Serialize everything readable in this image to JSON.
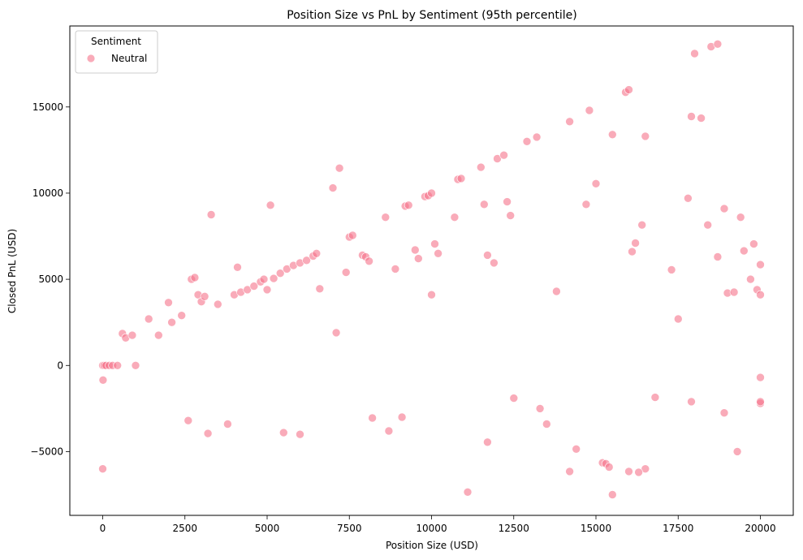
{
  "chart_data": {
    "type": "scatter",
    "title": "Position Size vs PnL by Sentiment (95th percentile)",
    "xlabel": "Position Size (USD)",
    "ylabel": "Closed PnL (USD)",
    "xlim": [
      -1000,
      21000
    ],
    "ylim": [
      -8700,
      19700
    ],
    "x_ticks": [
      0,
      2500,
      5000,
      7500,
      10000,
      12500,
      15000,
      17500,
      20000
    ],
    "x_tick_labels": [
      "0",
      "2500",
      "5000",
      "7500",
      "10000",
      "12500",
      "15000",
      "17500",
      "20000"
    ],
    "y_ticks": [
      -5000,
      0,
      5000,
      10000,
      15000
    ],
    "y_tick_labels": [
      "−5000",
      "0",
      "5000",
      "10000",
      "15000"
    ],
    "grid": false,
    "legend": {
      "title": "Sentiment",
      "placement": "top-left",
      "entries": [
        "Neutral"
      ]
    },
    "marker_color": "#f5738a",
    "marker_opacity": 0.6,
    "series": [
      {
        "name": "Neutral",
        "points": [
          [
            0,
            -6000
          ],
          [
            10,
            -850
          ],
          [
            0,
            0
          ],
          [
            50,
            0
          ],
          [
            100,
            0
          ],
          [
            200,
            0
          ],
          [
            300,
            0
          ],
          [
            450,
            0
          ],
          [
            600,
            1850
          ],
          [
            700,
            1600
          ],
          [
            900,
            1750
          ],
          [
            1000,
            0
          ],
          [
            1400,
            2700
          ],
          [
            1700,
            1750
          ],
          [
            2000,
            3650
          ],
          [
            2100,
            2500
          ],
          [
            2400,
            2900
          ],
          [
            2600,
            -3200
          ],
          [
            2700,
            5000
          ],
          [
            2800,
            5100
          ],
          [
            2900,
            4100
          ],
          [
            3000,
            3700
          ],
          [
            3100,
            4000
          ],
          [
            3200,
            -3950
          ],
          [
            3300,
            8750
          ],
          [
            3500,
            3550
          ],
          [
            3800,
            -3400
          ],
          [
            4000,
            4100
          ],
          [
            4100,
            5700
          ],
          [
            4200,
            4250
          ],
          [
            4400,
            4400
          ],
          [
            4600,
            4600
          ],
          [
            4800,
            4850
          ],
          [
            4900,
            5000
          ],
          [
            5000,
            4400
          ],
          [
            5100,
            9300
          ],
          [
            5200,
            5050
          ],
          [
            5400,
            5350
          ],
          [
            5500,
            -3900
          ],
          [
            5600,
            5600
          ],
          [
            5800,
            5800
          ],
          [
            6000,
            -4000
          ],
          [
            6000,
            5950
          ],
          [
            6200,
            6100
          ],
          [
            6400,
            6350
          ],
          [
            6500,
            6500
          ],
          [
            6600,
            4450
          ],
          [
            7000,
            10300
          ],
          [
            7100,
            1900
          ],
          [
            7200,
            11450
          ],
          [
            7400,
            5400
          ],
          [
            7500,
            7450
          ],
          [
            7600,
            7550
          ],
          [
            7900,
            6400
          ],
          [
            8000,
            6300
          ],
          [
            8100,
            6050
          ],
          [
            8200,
            -3050
          ],
          [
            8600,
            8600
          ],
          [
            8700,
            -3800
          ],
          [
            8900,
            5600
          ],
          [
            9100,
            -3000
          ],
          [
            9200,
            9250
          ],
          [
            9300,
            9300
          ],
          [
            9500,
            6700
          ],
          [
            9600,
            6200
          ],
          [
            9800,
            9800
          ],
          [
            9900,
            9850
          ],
          [
            10000,
            10000
          ],
          [
            10000,
            4100
          ],
          [
            10100,
            7050
          ],
          [
            10200,
            6500
          ],
          [
            10700,
            8600
          ],
          [
            10800,
            10800
          ],
          [
            10900,
            10850
          ],
          [
            11100,
            -7350
          ],
          [
            11500,
            11500
          ],
          [
            11600,
            9350
          ],
          [
            11700,
            6400
          ],
          [
            11700,
            -4450
          ],
          [
            11900,
            5950
          ],
          [
            12000,
            12000
          ],
          [
            12200,
            12200
          ],
          [
            12300,
            9500
          ],
          [
            12400,
            8700
          ],
          [
            12500,
            -1900
          ],
          [
            12900,
            13000
          ],
          [
            13200,
            13250
          ],
          [
            13300,
            -2500
          ],
          [
            13500,
            -3400
          ],
          [
            13800,
            4300
          ],
          [
            14200,
            14150
          ],
          [
            14200,
            -6150
          ],
          [
            14400,
            -4850
          ],
          [
            14700,
            9350
          ],
          [
            14800,
            14800
          ],
          [
            15000,
            10550
          ],
          [
            15200,
            -5650
          ],
          [
            15300,
            -5700
          ],
          [
            15400,
            -5900
          ],
          [
            15500,
            13400
          ],
          [
            15500,
            -7500
          ],
          [
            15900,
            15850
          ],
          [
            16000,
            16000
          ],
          [
            16100,
            6600
          ],
          [
            16200,
            7100
          ],
          [
            16400,
            8150
          ],
          [
            16500,
            13300
          ],
          [
            16500,
            -6000
          ],
          [
            16300,
            -6200
          ],
          [
            16000,
            -6150
          ],
          [
            16800,
            -1850
          ],
          [
            17300,
            5550
          ],
          [
            17500,
            2700
          ],
          [
            17800,
            9700
          ],
          [
            17900,
            -2100
          ],
          [
            17900,
            14450
          ],
          [
            18000,
            18100
          ],
          [
            18200,
            14350
          ],
          [
            18400,
            8150
          ],
          [
            18500,
            18500
          ],
          [
            18700,
            18650
          ],
          [
            18700,
            6300
          ],
          [
            18900,
            9100
          ],
          [
            18900,
            -2750
          ],
          [
            19000,
            4200
          ],
          [
            19200,
            4250
          ],
          [
            19300,
            -5000
          ],
          [
            19400,
            8600
          ],
          [
            19500,
            6650
          ],
          [
            19700,
            5000
          ],
          [
            19800,
            7050
          ],
          [
            19900,
            4400
          ],
          [
            20000,
            5850
          ],
          [
            20000,
            4100
          ],
          [
            20000,
            -2200
          ],
          [
            20000,
            -2100
          ],
          [
            20000,
            -700
          ]
        ]
      }
    ]
  }
}
